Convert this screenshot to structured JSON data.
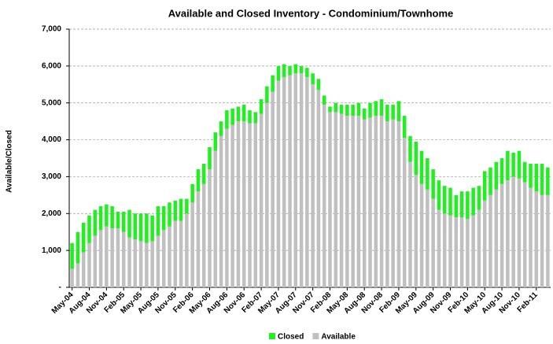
{
  "chart_data": {
    "type": "stacked_bar",
    "title": "Available and Closed Inventory - Condominium/Townhome",
    "y_label": "Available/Closed",
    "categories": [
      "May-04",
      null,
      null,
      "Aug-04",
      null,
      null,
      "Nov-04",
      null,
      null,
      "Feb-05",
      null,
      null,
      "May-05",
      null,
      null,
      "Aug-05",
      null,
      null,
      "Nov-05",
      null,
      null,
      "Feb-06",
      null,
      null,
      "May-06",
      null,
      null,
      "Aug-06",
      null,
      null,
      "Nov-06",
      null,
      null,
      "Feb-07",
      null,
      null,
      "May-07",
      null,
      null,
      "Aug-07",
      null,
      null,
      "Nov-07",
      null,
      null,
      "Feb-08",
      null,
      null,
      "May-08",
      null,
      null,
      "Aug-08",
      null,
      null,
      "Nov-08",
      null,
      null,
      "Feb-09",
      null,
      null,
      "May-09",
      null,
      null,
      "Aug-09",
      null,
      null,
      "Nov-09",
      null,
      null,
      "Feb-10",
      null,
      null,
      "May-10",
      null,
      null,
      "Aug-10",
      null,
      null,
      "Nov-10",
      null,
      null,
      "Feb-11",
      null,
      null
    ],
    "series": [
      {
        "name": "Closed",
        "color": "#22ee22",
        "values": [
          700,
          850,
          800,
          750,
          700,
          650,
          600,
          600,
          450,
          550,
          750,
          700,
          750,
          800,
          700,
          800,
          650,
          650,
          550,
          600,
          400,
          500,
          600,
          550,
          600,
          500,
          400,
          500,
          450,
          400,
          450,
          350,
          300,
          400,
          450,
          450,
          400,
          350,
          250,
          250,
          200,
          250,
          300,
          300,
          250,
          150,
          250,
          250,
          300,
          300,
          350,
          300,
          400,
          400,
          450,
          450,
          400,
          550,
          600,
          700,
          900,
          900,
          850,
          800,
          800,
          750,
          750,
          600,
          700,
          750,
          750,
          650,
          800,
          750,
          750,
          700,
          800,
          650,
          750,
          550,
          650,
          750,
          850,
          750
        ]
      },
      {
        "name": "Available",
        "color": "#c0c0c0",
        "values": [
          500,
          650,
          950,
          1200,
          1400,
          1550,
          1650,
          1600,
          1600,
          1500,
          1350,
          1300,
          1250,
          1200,
          1250,
          1400,
          1550,
          1650,
          1800,
          1800,
          2000,
          2300,
          2600,
          2800,
          3200,
          3700,
          4100,
          4300,
          4400,
          4500,
          4500,
          4450,
          4450,
          4700,
          5000,
          5300,
          5600,
          5700,
          5750,
          5800,
          5800,
          5700,
          5500,
          5350,
          4950,
          4750,
          4750,
          4700,
          4650,
          4650,
          4650,
          4550,
          4600,
          4650,
          4650,
          4500,
          4550,
          4500,
          4050,
          3400,
          3050,
          2800,
          2650,
          2400,
          2100,
          2000,
          1950,
          1900,
          1900,
          1850,
          1950,
          2100,
          2350,
          2500,
          2650,
          2800,
          2900,
          3000,
          2950,
          2850,
          2700,
          2600,
          2500,
          2500
        ]
      }
    ],
    "ylim": [
      0,
      7000
    ],
    "yticks": [
      {
        "value": 0,
        "label": "-"
      },
      {
        "value": 1000,
        "label": "1,000"
      },
      {
        "value": 2000,
        "label": "2,000"
      },
      {
        "value": 3000,
        "label": "3,000"
      },
      {
        "value": 4000,
        "label": "4,000"
      },
      {
        "value": 5000,
        "label": "5,000"
      },
      {
        "value": 6000,
        "label": "6,000"
      },
      {
        "value": 7000,
        "label": "7,000"
      }
    ],
    "grid": true
  }
}
